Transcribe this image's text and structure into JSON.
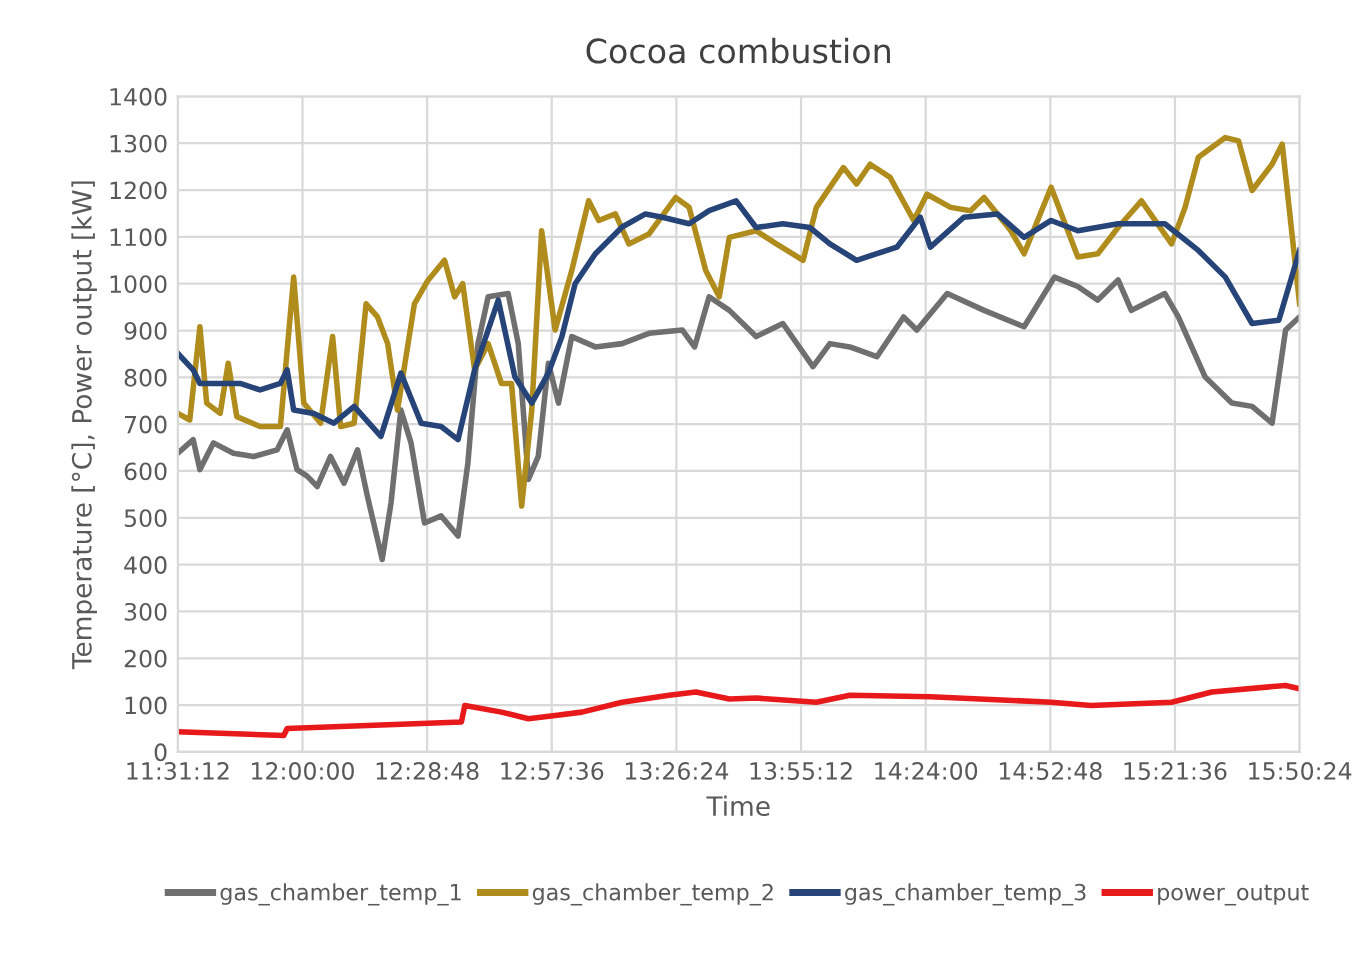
{
  "chart_data": {
    "type": "line",
    "title": "Cocoa combustion",
    "xlabel": "Time",
    "ylabel": "Temperature [°C], Power output [kW]",
    "xlim": [
      11.52,
      15.84
    ],
    "xticks": [
      {
        "value": 11.52,
        "label": "11:31:12"
      },
      {
        "value": 12.0,
        "label": "12:00:00"
      },
      {
        "value": 12.48,
        "label": "12:28:48"
      },
      {
        "value": 12.96,
        "label": "12:57:36"
      },
      {
        "value": 13.44,
        "label": "13:26:24"
      },
      {
        "value": 13.92,
        "label": "13:55:12"
      },
      {
        "value": 14.4,
        "label": "14:24:00"
      },
      {
        "value": 14.88,
        "label": "14:52:48"
      },
      {
        "value": 15.36,
        "label": "15:21:36"
      },
      {
        "value": 15.84,
        "label": "15:50:24"
      }
    ],
    "ylim": [
      0,
      1400
    ],
    "yticks": [
      0,
      100,
      200,
      300,
      400,
      500,
      600,
      700,
      800,
      900,
      1000,
      1100,
      1200,
      1300,
      1400
    ],
    "grid": true,
    "legend": "bottom",
    "marker": "none",
    "line_style": "solid",
    "series": [
      {
        "name": "gas_chamber_temp_1",
        "color": "#6f6f6f",
        "x": [
          11.52,
          11.579,
          11.605,
          11.657,
          11.734,
          11.812,
          11.902,
          11.941,
          11.979,
          12.018,
          12.057,
          12.108,
          12.16,
          12.212,
          12.25,
          12.307,
          12.341,
          12.379,
          12.418,
          12.47,
          12.534,
          12.599,
          12.637,
          12.676,
          12.715,
          12.792,
          12.831,
          12.87,
          12.908,
          12.947,
          12.986,
          13.037,
          13.128,
          13.231,
          13.334,
          13.463,
          13.51,
          13.566,
          13.644,
          13.747,
          13.85,
          13.966,
          14.031,
          14.108,
          14.212,
          14.315,
          14.366,
          14.483,
          14.625,
          14.779,
          14.896,
          14.986,
          15.063,
          15.141,
          15.192,
          15.321,
          15.373,
          15.476,
          15.579,
          15.657,
          15.734,
          15.786,
          15.84
        ],
        "values": [
          638,
          667,
          603,
          660,
          638,
          631,
          645,
          688,
          603,
          589,
          567,
          631,
          574,
          645,
          546,
          411,
          532,
          730,
          660,
          489,
          504,
          461,
          617,
          872,
          972,
          979,
          872,
          582,
          631,
          830,
          745,
          887,
          865,
          872,
          894,
          901,
          865,
          972,
          943,
          887,
          915,
          823,
          872,
          865,
          844,
          929,
          901,
          979,
          943,
          908,
          1014,
          994,
          965,
          1008,
          943,
          979,
          929,
          801,
          745,
          738,
          702,
          901,
          929
        ]
      },
      {
        "name": "gas_chamber_temp_2",
        "color": "#b08c1c",
        "x": [
          11.52,
          11.566,
          11.605,
          11.631,
          11.683,
          11.714,
          11.747,
          11.837,
          11.915,
          11.966,
          12.005,
          12.07,
          12.116,
          12.147,
          12.199,
          12.245,
          12.289,
          12.328,
          12.366,
          12.431,
          12.483,
          12.547,
          12.586,
          12.617,
          12.663,
          12.715,
          12.766,
          12.805,
          12.844,
          12.883,
          12.921,
          12.973,
          13.037,
          13.102,
          13.141,
          13.205,
          13.257,
          13.334,
          13.437,
          13.489,
          13.553,
          13.605,
          13.644,
          13.747,
          13.825,
          13.928,
          13.979,
          14.083,
          14.134,
          14.186,
          14.263,
          14.354,
          14.405,
          14.496,
          14.573,
          14.625,
          14.728,
          14.779,
          14.883,
          14.986,
          15.063,
          15.141,
          15.231,
          15.347,
          15.399,
          15.45,
          15.554,
          15.605,
          15.657,
          15.734,
          15.773,
          15.84
        ],
        "values": [
          723,
          709,
          908,
          745,
          723,
          830,
          716,
          695,
          695,
          1014,
          745,
          702,
          887,
          695,
          702,
          957,
          929,
          872,
          730,
          957,
          1007,
          1050,
          972,
          1000,
          816,
          872,
          787,
          787,
          525,
          730,
          1113,
          901,
          1028,
          1177,
          1135,
          1149,
          1085,
          1106,
          1184,
          1163,
          1028,
          972,
          1099,
          1113,
          1085,
          1050,
          1163,
          1248,
          1213,
          1255,
          1227,
          1135,
          1191,
          1163,
          1156,
          1184,
          1113,
          1064,
          1206,
          1057,
          1064,
          1120,
          1177,
          1085,
          1163,
          1270,
          1312,
          1305,
          1199,
          1255,
          1298,
          957
        ]
      },
      {
        "name": "gas_chamber_temp_3",
        "color": "#264478",
        "x": [
          11.52,
          11.579,
          11.605,
          11.683,
          11.76,
          11.837,
          11.915,
          11.941,
          11.966,
          12.044,
          12.121,
          12.199,
          12.302,
          12.379,
          12.457,
          12.534,
          12.599,
          12.663,
          12.754,
          12.818,
          12.883,
          12.947,
          12.999,
          13.05,
          13.128,
          13.231,
          13.321,
          13.386,
          13.489,
          13.566,
          13.67,
          13.747,
          13.85,
          13.954,
          14.031,
          14.134,
          14.212,
          14.289,
          14.379,
          14.418,
          14.547,
          14.676,
          14.779,
          14.883,
          14.986,
          15.141,
          15.321,
          15.45,
          15.554,
          15.657,
          15.76,
          15.84
        ],
        "values": [
          851,
          816,
          787,
          787,
          787,
          773,
          787,
          816,
          730,
          723,
          702,
          738,
          674,
          809,
          702,
          695,
          667,
          816,
          965,
          801,
          745,
          809,
          887,
          1000,
          1064,
          1121,
          1149,
          1142,
          1128,
          1156,
          1177,
          1120,
          1128,
          1120,
          1085,
          1050,
          1064,
          1078,
          1142,
          1078,
          1142,
          1149,
          1099,
          1135,
          1113,
          1128,
          1128,
          1071,
          1014,
          915,
          922,
          1071
        ]
      },
      {
        "name": "power_output",
        "color": "#e8191b",
        "x": [
          11.52,
          11.928,
          11.941,
          12.612,
          12.625,
          12.766,
          12.87,
          12.973,
          13.076,
          13.231,
          13.412,
          13.515,
          13.644,
          13.747,
          13.979,
          14.108,
          14.418,
          14.883,
          15.037,
          15.347,
          15.502,
          15.786,
          15.84
        ],
        "values": [
          43,
          35,
          50,
          64,
          99,
          85,
          71,
          78,
          85,
          106,
          121,
          128,
          113,
          115,
          106,
          121,
          118,
          106,
          99,
          106,
          128,
          142,
          135
        ]
      }
    ]
  }
}
